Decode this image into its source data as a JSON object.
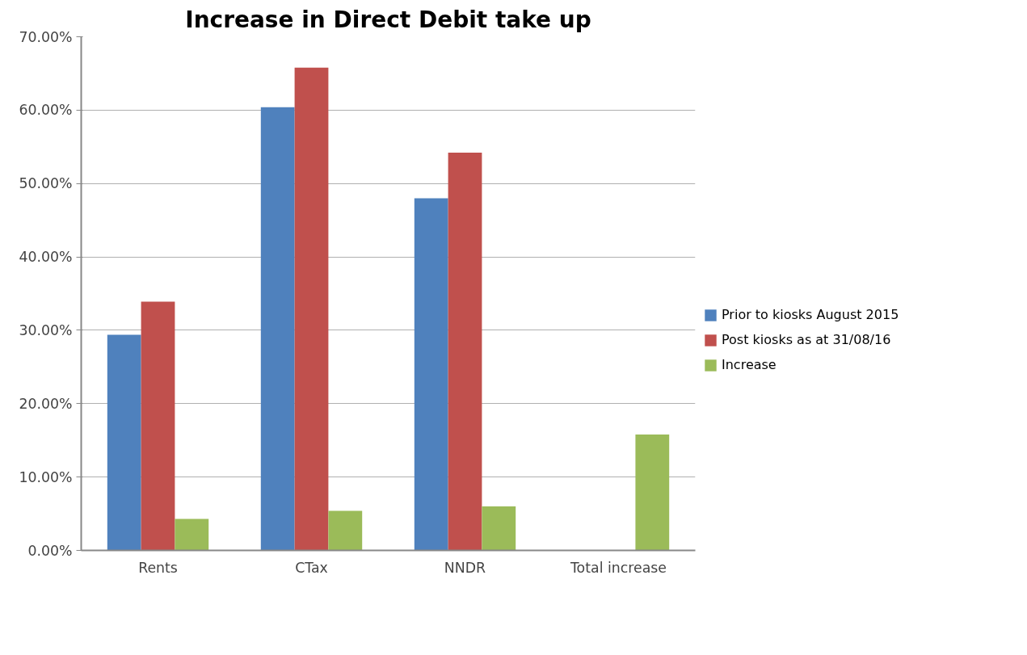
{
  "chart_data": {
    "type": "bar",
    "title": "Increase in Direct Debit take up",
    "categories": [
      "Rents",
      "CTax",
      "NNDR",
      "Total increase"
    ],
    "series": [
      {
        "name": "Prior to kiosks August 2015",
        "color": "#4f81bd",
        "values": [
          29.4,
          60.4,
          48.0,
          null
        ]
      },
      {
        "name": "Post kiosks as at 31/08/16",
        "color": "#c0504d",
        "values": [
          33.9,
          65.8,
          54.2,
          null
        ]
      },
      {
        "name": "Increase",
        "color": "#9bbb59",
        "values": [
          4.3,
          5.4,
          6.0,
          15.8
        ]
      }
    ],
    "ylim": [
      0,
      70
    ],
    "yticks": [
      {
        "value": 0,
        "label": "0.00%"
      },
      {
        "value": 10,
        "label": "10.00%"
      },
      {
        "value": 20,
        "label": "20.00%"
      },
      {
        "value": 30,
        "label": "30.00%"
      },
      {
        "value": 40,
        "label": "40.00%"
      },
      {
        "value": 50,
        "label": "50.00%"
      },
      {
        "value": 60,
        "label": "60.00%"
      },
      {
        "value": 70,
        "label": "70.00%"
      }
    ],
    "grid": "y",
    "legend": "right"
  }
}
